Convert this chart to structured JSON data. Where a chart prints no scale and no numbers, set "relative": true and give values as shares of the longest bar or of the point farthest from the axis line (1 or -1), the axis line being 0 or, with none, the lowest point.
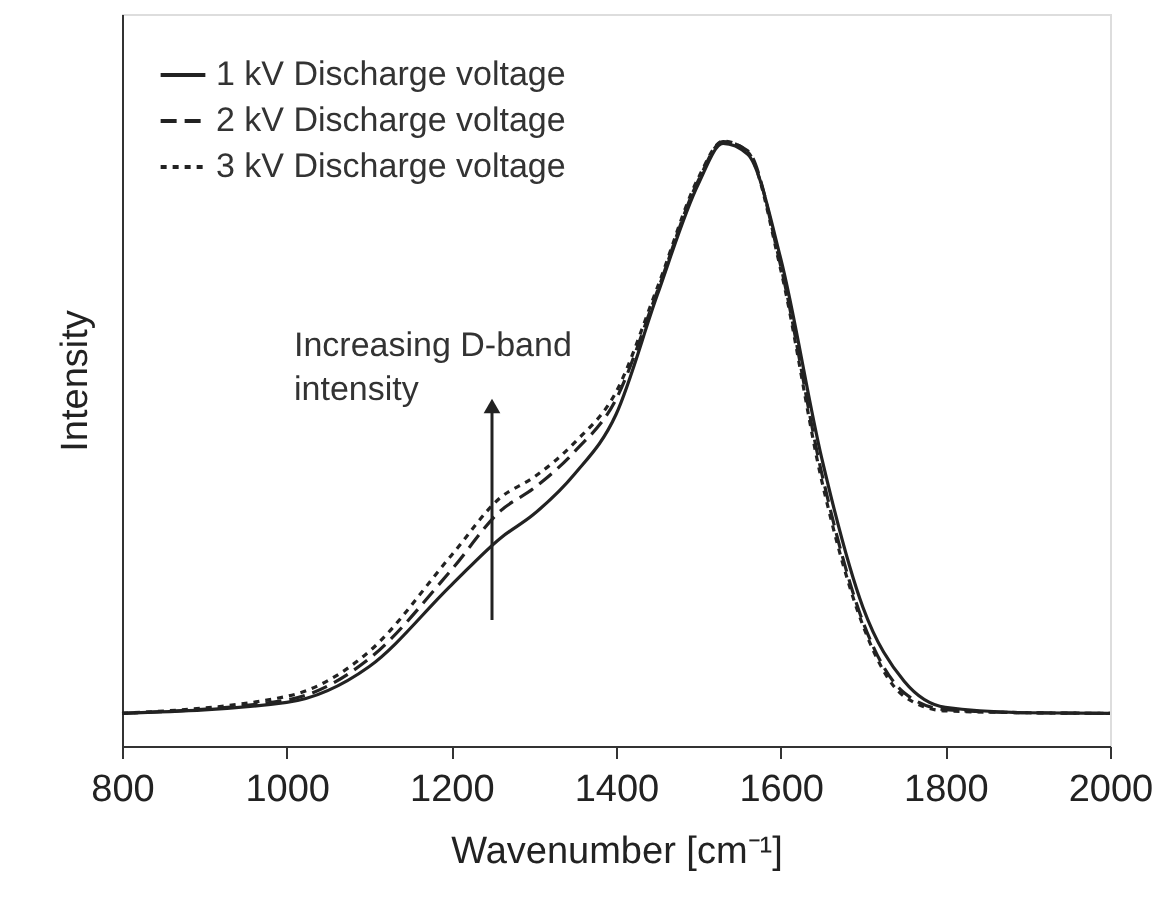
{
  "chart_data": {
    "type": "line",
    "relative": true,
    "xlabel": "Wavenumber [cm⁻¹]",
    "ylabel": "Intensity",
    "xlim": [
      800,
      2000
    ],
    "xticks": [
      800,
      1000,
      1200,
      1400,
      1600,
      1800,
      2000
    ],
    "grid": false,
    "legend": "top left",
    "tick_labels": "x",
    "marker": "none",
    "annotations": [
      "Increasing D-band intensity"
    ],
    "x": [
      800,
      1000,
      1100,
      1200,
      1260,
      1300,
      1350,
      1400,
      1450,
      1500,
      1530,
      1560,
      1600,
      1650,
      1700,
      1750,
      1800,
      1900,
      2000
    ],
    "series": [
      {
        "name": "1 kV Discharge voltage",
        "color": "#222222",
        "line_style": "solid",
        "values": [
          0.054,
          0.072,
          0.131,
          0.266,
          0.344,
          0.383,
          0.45,
          0.548,
          0.745,
          0.929,
          0.996,
          0.978,
          0.806,
          0.475,
          0.229,
          0.107,
          0.064,
          0.055,
          0.054
        ]
      },
      {
        "name": "2 kV Discharge voltage",
        "color": "#222222",
        "line_style": "dashed",
        "values": [
          0.054,
          0.076,
          0.144,
          0.291,
          0.389,
          0.426,
          0.487,
          0.573,
          0.751,
          0.935,
          0.999,
          0.984,
          0.794,
          0.45,
          0.205,
          0.088,
          0.06,
          0.055,
          0.054
        ]
      },
      {
        "name": "3 kV Discharge voltage",
        "color": "#222222",
        "line_style": "dotted",
        "values": [
          0.054,
          0.082,
          0.156,
          0.315,
          0.411,
          0.444,
          0.502,
          0.585,
          0.757,
          0.939,
          1.0,
          0.982,
          0.788,
          0.438,
          0.199,
          0.082,
          0.058,
          0.055,
          0.054
        ]
      }
    ]
  }
}
